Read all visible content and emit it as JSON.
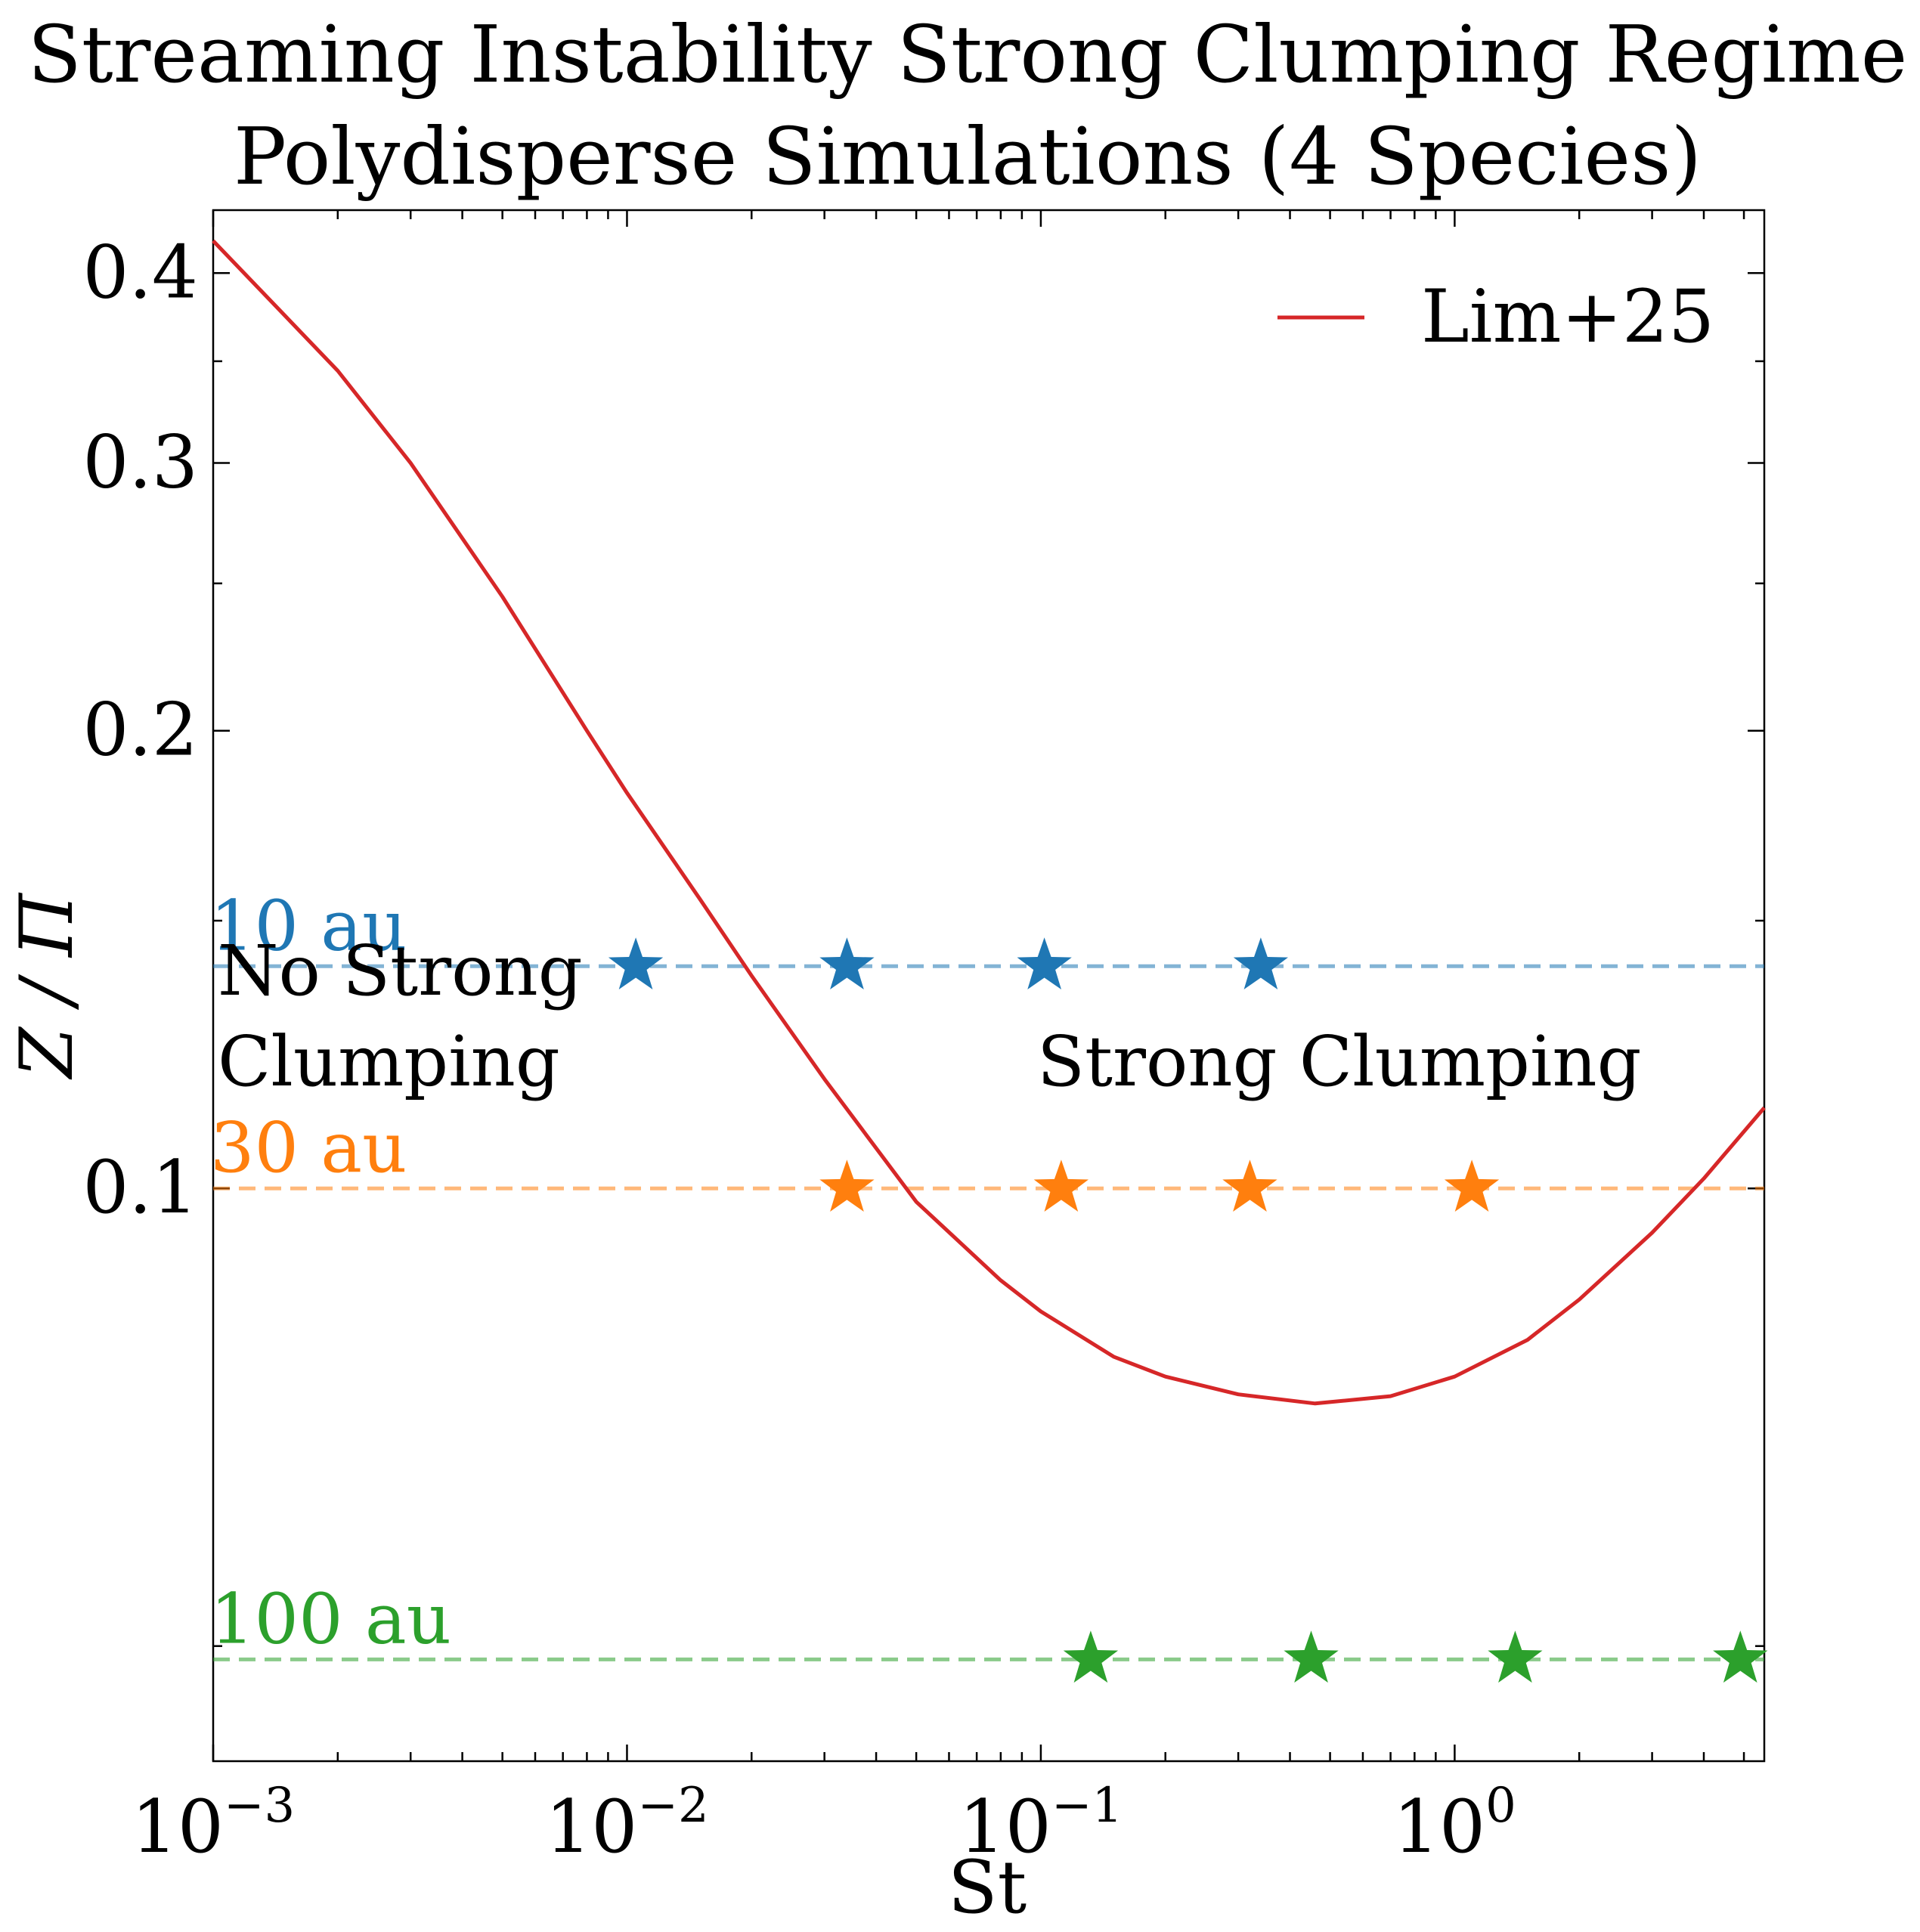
{
  "chart_data": {
    "type": "scatter",
    "title_line1": "Streaming Instability Strong Clumping Regime",
    "title_line2": "Polydisperse Simulations (4 Species)",
    "xlabel": "St",
    "ylabel": "Z / Π",
    "x_scale": "log",
    "y_scale": "log",
    "xlim": [
      0.001,
      5.6
    ],
    "ylim": [
      0.042,
      0.44
    ],
    "x_ticks": [
      {
        "value": 0.001,
        "base": "10",
        "exp": "−3"
      },
      {
        "value": 0.01,
        "base": "10",
        "exp": "−2"
      },
      {
        "value": 0.1,
        "base": "10",
        "exp": "−1"
      },
      {
        "value": 1,
        "base": "10",
        "exp": "0"
      }
    ],
    "y_ticks": [
      {
        "value": 0.1,
        "label": "0.1"
      },
      {
        "value": 0.2,
        "label": "0.2"
      },
      {
        "value": 0.3,
        "label": "0.3"
      },
      {
        "value": 0.4,
        "label": "0.4"
      }
    ],
    "curve": {
      "name": "Lim+25",
      "color": "#d62728",
      "x": [
        0.001,
        0.002,
        0.003,
        0.005,
        0.008,
        0.01,
        0.015,
        0.02,
        0.03,
        0.05,
        0.08,
        0.1,
        0.15,
        0.2,
        0.3,
        0.46,
        0.7,
        1.0,
        1.5,
        2.0,
        3.0,
        4.0,
        5.6
      ],
      "y": [
        0.42,
        0.345,
        0.3,
        0.245,
        0.2,
        0.182,
        0.155,
        0.138,
        0.118,
        0.098,
        0.087,
        0.083,
        0.0775,
        0.0752,
        0.0732,
        0.0722,
        0.073,
        0.0752,
        0.0795,
        0.0845,
        0.0935,
        0.1015,
        0.113
      ]
    },
    "series": [
      {
        "label": "10 au",
        "color": "#1f77b4",
        "y": 0.14,
        "x": [
          0.0105,
          0.034,
          0.102,
          0.34
        ]
      },
      {
        "label": "30 au",
        "color": "#ff7f0e",
        "y": 0.1,
        "x": [
          0.034,
          0.112,
          0.32,
          1.1
        ]
      },
      {
        "label": "100 au",
        "color": "#2ca02c",
        "y": 0.049,
        "x": [
          0.132,
          0.45,
          1.4,
          4.9
        ]
      }
    ],
    "annotations": {
      "left_line1": "No Strong",
      "left_line2": "Clumping",
      "right": "Strong Clumping"
    },
    "legend": {
      "label": "Lim+25",
      "placement": "top-right"
    },
    "grid": false
  }
}
